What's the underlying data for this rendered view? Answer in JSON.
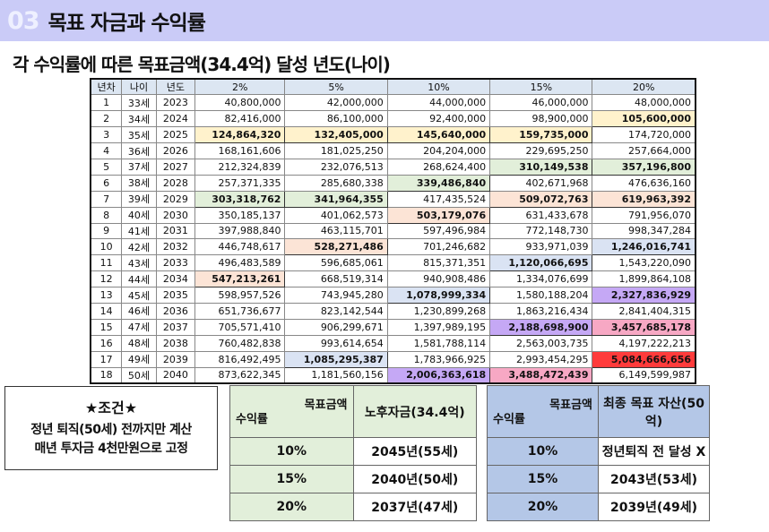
{
  "header": {
    "number": "03",
    "title": "목표 자금과 수익률"
  },
  "subtitle": "각 수익률에 따른 목표금액(34.4억) 달성 년도(나이)",
  "table": {
    "columns": [
      "년차",
      "나이",
      "년도",
      "2%",
      "5%",
      "10%",
      "15%",
      "20%"
    ],
    "highlight_colors": {
      "yellow": "#fff2cc",
      "green": "#e2efda",
      "peach": "#fce4d6",
      "blue": "#dae3f3",
      "purple": "#c5a8f5",
      "pink": "#f7a8c4",
      "red": "#ff3b3b"
    },
    "rows": [
      {
        "n": "1",
        "age": "33세",
        "year": "2023",
        "v": [
          "40,800,000",
          "42,000,000",
          "44,000,000",
          "46,000,000",
          "48,000,000"
        ],
        "hl": [
          null,
          null,
          null,
          null,
          null
        ]
      },
      {
        "n": "2",
        "age": "34세",
        "year": "2024",
        "v": [
          "82,416,000",
          "86,100,000",
          "92,400,000",
          "98,900,000",
          "105,600,000"
        ],
        "hl": [
          null,
          null,
          null,
          null,
          "yellow"
        ]
      },
      {
        "n": "3",
        "age": "35세",
        "year": "2025",
        "v": [
          "124,864,320",
          "132,405,000",
          "145,640,000",
          "159,735,000",
          "174,720,000"
        ],
        "hl": [
          "yellow",
          "yellow",
          "yellow",
          "yellow",
          null
        ]
      },
      {
        "n": "4",
        "age": "36세",
        "year": "2026",
        "v": [
          "168,161,606",
          "181,025,250",
          "204,204,000",
          "229,695,250",
          "257,664,000"
        ],
        "hl": [
          null,
          null,
          null,
          null,
          null
        ]
      },
      {
        "n": "5",
        "age": "37세",
        "year": "2027",
        "v": [
          "212,324,839",
          "232,076,513",
          "268,624,400",
          "310,149,538",
          "357,196,800"
        ],
        "hl": [
          null,
          null,
          null,
          "green",
          "green"
        ]
      },
      {
        "n": "6",
        "age": "38세",
        "year": "2028",
        "v": [
          "257,371,335",
          "285,680,338",
          "339,486,840",
          "402,671,968",
          "476,636,160"
        ],
        "hl": [
          null,
          null,
          "green",
          null,
          null
        ]
      },
      {
        "n": "7",
        "age": "39세",
        "year": "2029",
        "v": [
          "303,318,762",
          "341,964,355",
          "417,435,524",
          "509,072,763",
          "619,963,392"
        ],
        "hl": [
          "green",
          "green",
          null,
          "peach",
          "peach"
        ]
      },
      {
        "n": "8",
        "age": "40세",
        "year": "2030",
        "v": [
          "350,185,137",
          "401,062,573",
          "503,179,076",
          "631,433,678",
          "791,956,070"
        ],
        "hl": [
          null,
          null,
          "peach",
          null,
          null
        ]
      },
      {
        "n": "9",
        "age": "41세",
        "year": "2031",
        "v": [
          "397,988,840",
          "463,115,701",
          "597,496,984",
          "772,148,730",
          "998,347,284"
        ],
        "hl": [
          null,
          null,
          null,
          null,
          null
        ]
      },
      {
        "n": "10",
        "age": "42세",
        "year": "2032",
        "v": [
          "446,748,617",
          "528,271,486",
          "701,246,682",
          "933,971,039",
          "1,246,016,741"
        ],
        "hl": [
          null,
          "peach",
          null,
          null,
          "blue"
        ]
      },
      {
        "n": "11",
        "age": "43세",
        "year": "2033",
        "v": [
          "496,483,589",
          "596,685,061",
          "815,371,351",
          "1,120,066,695",
          "1,543,220,090"
        ],
        "hl": [
          null,
          null,
          null,
          "blue",
          null
        ]
      },
      {
        "n": "12",
        "age": "44세",
        "year": "2034",
        "v": [
          "547,213,261",
          "668,519,314",
          "940,908,486",
          "1,334,076,699",
          "1,899,864,108"
        ],
        "hl": [
          "peach",
          null,
          null,
          null,
          null
        ]
      },
      {
        "n": "13",
        "age": "45세",
        "year": "2035",
        "v": [
          "598,957,526",
          "743,945,280",
          "1,078,999,334",
          "1,580,188,204",
          "2,327,836,929"
        ],
        "hl": [
          null,
          null,
          "blue",
          null,
          "purple"
        ]
      },
      {
        "n": "14",
        "age": "46세",
        "year": "2036",
        "v": [
          "651,736,677",
          "823,142,544",
          "1,230,899,268",
          "1,863,216,434",
          "2,841,404,315"
        ],
        "hl": [
          null,
          null,
          null,
          null,
          null
        ]
      },
      {
        "n": "15",
        "age": "47세",
        "year": "2037",
        "v": [
          "705,571,410",
          "906,299,671",
          "1,397,989,195",
          "2,188,698,900",
          "3,457,685,178"
        ],
        "hl": [
          null,
          null,
          null,
          "purple",
          "pink"
        ]
      },
      {
        "n": "16",
        "age": "48세",
        "year": "2038",
        "v": [
          "760,482,838",
          "993,614,654",
          "1,581,788,114",
          "2,563,003,735",
          "4,197,222,213"
        ],
        "hl": [
          null,
          null,
          null,
          null,
          null
        ]
      },
      {
        "n": "17",
        "age": "49세",
        "year": "2039",
        "v": [
          "816,492,495",
          "1,085,295,387",
          "1,783,966,925",
          "2,993,454,295",
          "5,084,666,656"
        ],
        "hl": [
          null,
          "blue",
          null,
          null,
          "red"
        ]
      },
      {
        "n": "18",
        "age": "50세",
        "year": "2040",
        "v": [
          "873,622,345",
          "1,181,560,156",
          "2,006,363,618",
          "3,488,472,439",
          "6,149,599,987"
        ],
        "hl": [
          null,
          null,
          "purple",
          "pink",
          null
        ]
      }
    ]
  },
  "condition": {
    "title": "★조건★",
    "line1": "정년 퇴직(50세) 전까지만 계산",
    "line2": "매년 투자금 4천만원으로 고정"
  },
  "summary_retire": {
    "corner_top": "목표금액",
    "corner_bottom": "수익률",
    "header": "노후자금(34.4억)",
    "rows": [
      {
        "rate": "10%",
        "result": "2045년(55세)"
      },
      {
        "rate": "15%",
        "result": "2040년(50세)"
      },
      {
        "rate": "20%",
        "result": "2037년(47세)"
      }
    ]
  },
  "summary_final": {
    "corner_top": "목표금액",
    "corner_bottom": "수익률",
    "header": "최종 목표 자산(50억)",
    "rows": [
      {
        "rate": "10%",
        "result": "정년퇴직 전 달성 X"
      },
      {
        "rate": "15%",
        "result": "2043년(53세)"
      },
      {
        "rate": "20%",
        "result": "2039년(49세)"
      }
    ]
  }
}
